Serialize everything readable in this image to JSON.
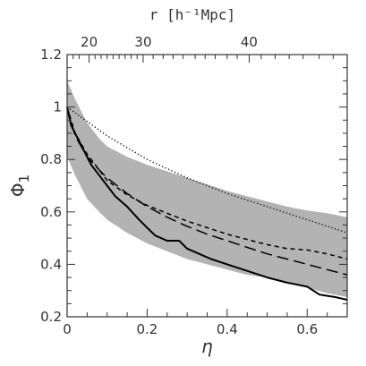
{
  "chart_data": {
    "type": "line",
    "xlabel": "η",
    "ylabel": "Φ",
    "ylabel_subscript": "1",
    "top_axis_title": "r [h⁻¹Mpc]",
    "xlim": [
      0,
      0.7
    ],
    "ylim": [
      0.2,
      1.2
    ],
    "x_ticks": [
      0,
      0.2,
      0.4,
      0.6
    ],
    "x_tick_labels": [
      "0",
      "0.2",
      "0.4",
      "0.6"
    ],
    "y_ticks": [
      0.2,
      0.4,
      0.6,
      0.8,
      1.0,
      1.2
    ],
    "y_tick_labels": [
      "0.2",
      "0.4",
      "0.6",
      "0.8",
      "1",
      "1.2"
    ],
    "top_ticks": [
      {
        "label": "20",
        "eta": 0.055
      },
      {
        "label": "30",
        "eta": 0.19
      },
      {
        "label": "40",
        "eta": 0.455
      }
    ],
    "shaded_band": {
      "color": "#b3b3b3",
      "x": [
        0,
        0.02,
        0.05,
        0.08,
        0.1,
        0.15,
        0.2,
        0.25,
        0.3,
        0.35,
        0.4,
        0.45,
        0.5,
        0.55,
        0.6,
        0.65,
        0.7
      ],
      "upper": [
        1.1,
        1.03,
        0.94,
        0.88,
        0.85,
        0.81,
        0.78,
        0.755,
        0.73,
        0.705,
        0.68,
        0.66,
        0.64,
        0.62,
        0.605,
        0.595,
        0.58
      ],
      "lower": [
        0.81,
        0.74,
        0.65,
        0.6,
        0.57,
        0.52,
        0.48,
        0.45,
        0.42,
        0.4,
        0.38,
        0.36,
        0.35,
        0.33,
        0.31,
        0.29,
        0.275
      ]
    },
    "series": [
      {
        "style": "solid",
        "color": "#000000",
        "x": [
          0,
          0.01,
          0.02,
          0.04,
          0.06,
          0.08,
          0.1,
          0.12,
          0.15,
          0.18,
          0.2,
          0.22,
          0.25,
          0.28,
          0.3,
          0.33,
          0.36,
          0.4,
          0.45,
          0.5,
          0.55,
          0.6,
          0.63,
          0.67,
          0.7
        ],
        "y": [
          1.0,
          0.93,
          0.9,
          0.84,
          0.78,
          0.74,
          0.7,
          0.66,
          0.62,
          0.57,
          0.54,
          0.51,
          0.49,
          0.49,
          0.46,
          0.44,
          0.42,
          0.4,
          0.375,
          0.35,
          0.33,
          0.315,
          0.285,
          0.275,
          0.265
        ]
      },
      {
        "style": "long-dash",
        "color": "#000000",
        "x": [
          0,
          0.02,
          0.05,
          0.08,
          0.1,
          0.15,
          0.2,
          0.25,
          0.3,
          0.35,
          0.4,
          0.45,
          0.5,
          0.55,
          0.6,
          0.65,
          0.7
        ],
        "y": [
          1.0,
          0.89,
          0.81,
          0.76,
          0.73,
          0.67,
          0.62,
          0.58,
          0.545,
          0.515,
          0.49,
          0.465,
          0.44,
          0.42,
          0.4,
          0.38,
          0.36
        ]
      },
      {
        "style": "short-dash",
        "color": "#000000",
        "x": [
          0,
          0.02,
          0.05,
          0.08,
          0.1,
          0.15,
          0.2,
          0.25,
          0.3,
          0.35,
          0.4,
          0.45,
          0.5,
          0.55,
          0.6,
          0.65,
          0.7
        ],
        "y": [
          1.0,
          0.9,
          0.82,
          0.76,
          0.72,
          0.665,
          0.625,
          0.595,
          0.565,
          0.54,
          0.515,
          0.495,
          0.475,
          0.46,
          0.455,
          0.44,
          0.42
        ]
      },
      {
        "style": "dotted",
        "color": "#000000",
        "x": [
          0,
          0.1,
          0.2,
          0.3,
          0.4,
          0.5,
          0.6,
          0.7
        ],
        "y": [
          1.0,
          0.89,
          0.8,
          0.73,
          0.67,
          0.62,
          0.57,
          0.52
        ]
      }
    ],
    "grid": false
  }
}
